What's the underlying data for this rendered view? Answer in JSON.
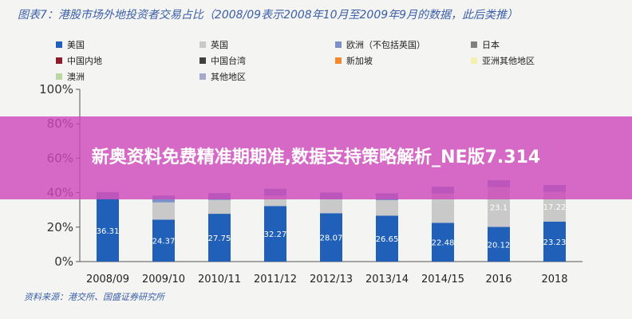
{
  "title": "图表7：港股市场外地投资者交易占比（2008/09表示2008年10月至2009年9月的数据，此后类推）",
  "source": "资料来源：港交所、国盛证券研究所",
  "banner": "新奥资料免费精准期期准,数据支持策略解析_NE版7.314",
  "chart_data": {
    "type": "bar",
    "stacked": true,
    "categories": [
      "2008/09",
      "2009/10",
      "2010/11",
      "2011/12",
      "2012/13",
      "2013/14",
      "2014/15",
      "2016",
      "2018"
    ],
    "ylim": [
      0,
      100
    ],
    "yticks": [
      "0%",
      "20%",
      "40%",
      "60%",
      "80%",
      "100%"
    ],
    "grid": false,
    "legend_position": "top",
    "series": [
      {
        "name": "美国",
        "color": "#2060b8",
        "values": [
          36.31,
          24.37,
          27.75,
          32.27,
          28.07,
          26.65,
          22.48,
          20.12,
          23.23
        ],
        "labels": [
          "36.31",
          "24.37",
          "27.75",
          "32.27",
          "28.07",
          "26.65",
          "22.48",
          "20.12",
          "23.23"
        ]
      },
      {
        "name": "英国",
        "color": "#c9c9c9",
        "values": [
          0,
          10,
          8,
          6,
          8,
          9,
          17,
          23.1,
          17.22
        ],
        "labels": [
          "",
          "",
          "",
          "",
          "",
          "",
          "",
          "23.1",
          "17.22"
        ]
      },
      {
        "name": "欧洲（不包括英国）",
        "color": "#7b8fc9",
        "values": [
          4,
          4,
          4,
          4,
          4,
          4,
          4,
          4,
          4
        ],
        "labels": [
          "",
          "",
          "",
          "",
          "",
          "",
          "",
          "",
          ""
        ]
      },
      {
        "name": "日本",
        "color": "#808080",
        "values": [
          0,
          0,
          0,
          0,
          0,
          0,
          0,
          0,
          0
        ],
        "labels": [
          "",
          "",
          "",
          "",
          "",
          "",
          "",
          "",
          ""
        ]
      },
      {
        "name": "中国内地",
        "color": "#8b1a2b",
        "values": [
          0,
          0,
          0,
          0,
          0,
          0,
          0,
          0,
          0
        ],
        "labels": [
          "",
          "",
          "",
          "",
          "",
          "",
          "",
          "",
          ""
        ]
      },
      {
        "name": "中国台湾",
        "color": "#404040",
        "values": [
          0,
          0,
          0,
          0,
          0,
          0,
          0,
          0,
          0
        ],
        "labels": [
          "",
          "",
          "",
          "",
          "",
          "",
          "",
          "",
          ""
        ]
      },
      {
        "name": "新加坡",
        "color": "#f08a2c",
        "values": [
          0,
          0,
          0,
          0,
          0,
          0,
          0,
          0,
          0
        ],
        "labels": [
          "",
          "",
          "",
          "",
          "",
          "",
          "",
          "",
          ""
        ]
      },
      {
        "name": "亚洲其他地区",
        "color": "#f5efb0",
        "values": [
          0,
          0,
          0,
          0,
          0,
          0,
          0,
          0,
          0
        ],
        "labels": [
          "",
          "",
          "",
          "",
          "",
          "",
          "",
          "",
          ""
        ]
      },
      {
        "name": "澳洲",
        "color": "#b8d8a0",
        "values": [
          0,
          0,
          0,
          0,
          0,
          0,
          0,
          0,
          0
        ],
        "labels": [
          "",
          "",
          "",
          "",
          "",
          "",
          "",
          "",
          ""
        ]
      },
      {
        "name": "其他地区",
        "color": "#a8a8cc",
        "values": [
          0,
          0,
          0,
          0,
          0,
          0,
          0,
          0,
          0
        ],
        "labels": [
          "",
          "",
          "",
          "",
          "",
          "",
          "",
          "",
          ""
        ]
      }
    ]
  }
}
